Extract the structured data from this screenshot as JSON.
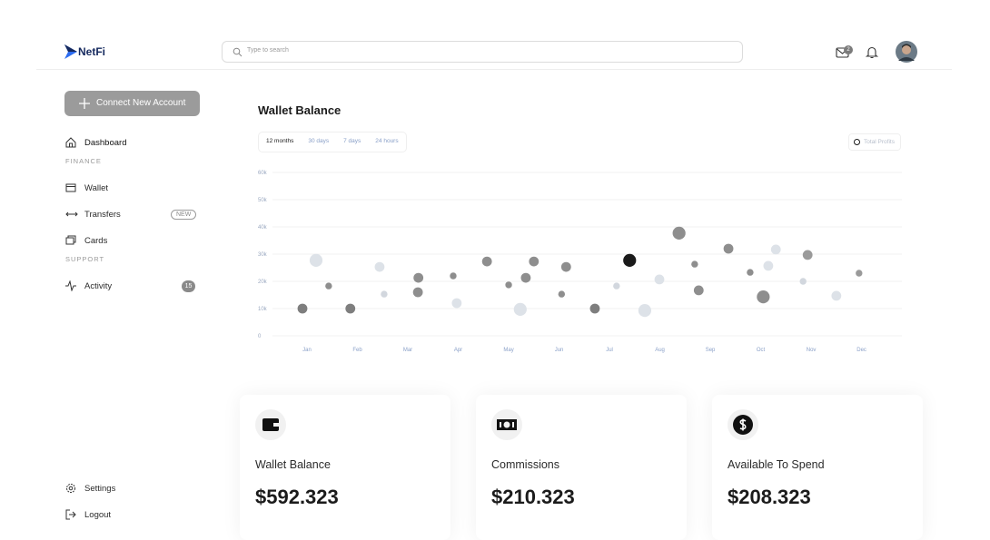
{
  "header": {
    "logo": "NetFi",
    "search_placeholder": "Type to search",
    "mail_badge": "2"
  },
  "sidebar": {
    "button": "Connect New Account",
    "dashboard": "Dashboard",
    "sections": [
      {
        "title": "FINANCE",
        "items": [
          {
            "label": "Wallet"
          },
          {
            "label": "Transfers",
            "badge": "NEW"
          },
          {
            "label": "Cards"
          }
        ]
      },
      {
        "title": "SUPPORT",
        "items": [
          {
            "label": "Activity",
            "badge": "15"
          }
        ]
      }
    ],
    "footer": [
      "Settings",
      "Logout"
    ]
  },
  "chart_data": {
    "type": "scatter",
    "title": "Wallet Balance",
    "ranges": [
      "12 months",
      "30 days",
      "7 days",
      "24 hours"
    ],
    "series": [
      {
        "name": "Total Profits",
        "x": [
          -0.09,
          0.18,
          0.43,
          0.86,
          1.44,
          1.53,
          2.21,
          2.2,
          2.9,
          2.97,
          3.57,
          4.0,
          4.23,
          4.34,
          4.5,
          5.05,
          5.14,
          5.71,
          6.14,
          6.4,
          6.7,
          6.99,
          7.38,
          7.69,
          7.77,
          8.36,
          8.79,
          9.05,
          9.15,
          9.3,
          9.93,
          9.84,
          10.5,
          10.95
        ],
        "values": [
          10000,
          27700,
          18300,
          10000,
          25300,
          15300,
          21300,
          16000,
          22000,
          12000,
          27300,
          18700,
          9700,
          21300,
          27300,
          15300,
          25300,
          10000,
          18300,
          27700,
          9300,
          20700,
          37700,
          26300,
          16700,
          32000,
          23300,
          14300,
          25700,
          31700,
          29700,
          20000,
          14700,
          23000
        ],
        "sizes": [
          2,
          3,
          1,
          2,
          2,
          1,
          2,
          2,
          1,
          2,
          2,
          1,
          3,
          2,
          2,
          1,
          2,
          2,
          1,
          3,
          3,
          2,
          3,
          1,
          2,
          2,
          1,
          3,
          2,
          2,
          2,
          1,
          2,
          1
        ],
        "colors": [
          "#7e7e7e",
          "#dde2e8",
          "#8e8e8e",
          "#7e7e7e",
          "#dde2e8",
          "#d2d7de",
          "#8e8e8e",
          "#8e8e8e",
          "#8e8e8e",
          "#dde2e8",
          "#8e8e8e",
          "#8e8e8e",
          "#dde2e8",
          "#8e8e8e",
          "#8e8e8e",
          "#8e8e8e",
          "#8e8e8e",
          "#7e7e7e",
          "#d2d7de",
          "#1a1a1a",
          "#dde2e8",
          "#dde2e8",
          "#8e8e8e",
          "#8e8e8e",
          "#8e8e8e",
          "#8e8e8e",
          "#8e8e8e",
          "#8e8e8e",
          "#dde2e8",
          "#dde2e8",
          "#9a9a9a",
          "#d2d7de",
          "#dde2e8",
          "#9a9a9a"
        ]
      }
    ],
    "xlim": [
      -0.6,
      11.8
    ],
    "xticks": [
      {
        "value": 0,
        "label": "Jan"
      },
      {
        "value": 1,
        "label": "Feb"
      },
      {
        "value": 2,
        "label": "Mar"
      },
      {
        "value": 3,
        "label": "Apr"
      },
      {
        "value": 4,
        "label": "May"
      },
      {
        "value": 5,
        "label": "Jun"
      },
      {
        "value": 6,
        "label": "Jul"
      },
      {
        "value": 7,
        "label": "Aug"
      },
      {
        "value": 8,
        "label": "Sep"
      },
      {
        "value": 9,
        "label": "Oct"
      },
      {
        "value": 10,
        "label": "Nov"
      },
      {
        "value": 11,
        "label": "Dec"
      }
    ],
    "ylim": [
      0,
      60000
    ],
    "yticks": [
      0,
      {
        "value": 10000,
        "label": "10k"
      },
      {
        "value": 20000,
        "label": "20k"
      },
      {
        "value": 30000,
        "label": "30k"
      },
      {
        "value": 40000,
        "label": "40k"
      },
      {
        "value": 50000,
        "label": "50k"
      },
      {
        "value": 60000,
        "label": "60k"
      }
    ],
    "grid": true
  },
  "cards": [
    {
      "label": "Wallet Balance",
      "amount": "$592.323"
    },
    {
      "label": "Commissions",
      "amount": "$210.323"
    },
    {
      "label": "Available To Spend",
      "amount": "$208.323"
    }
  ]
}
